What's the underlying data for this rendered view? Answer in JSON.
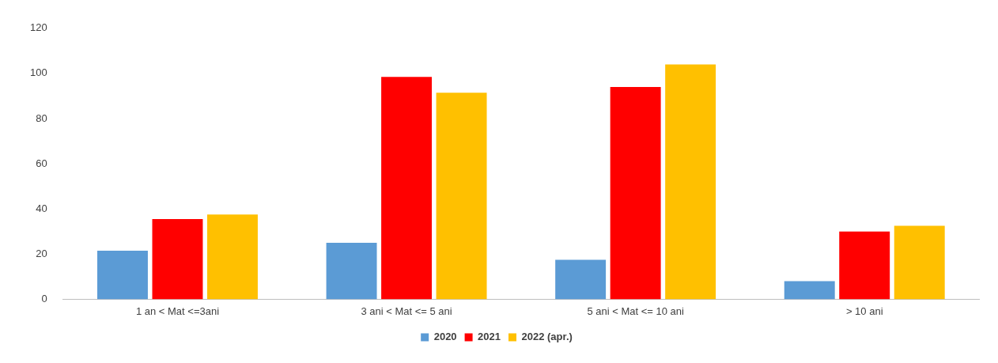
{
  "chart_data": {
    "type": "bar",
    "categories": [
      "1 an < Mat <=3ani",
      "3 ani < Mat <= 5 ani",
      "5 ani < Mat <= 10 ani",
      "> 10 ani"
    ],
    "series": [
      {
        "name": "2020",
        "color": "#5b9bd5",
        "values": [
          21.5,
          25,
          17.5,
          8
        ]
      },
      {
        "name": "2021",
        "color": "#ff0000",
        "values": [
          35.5,
          98.5,
          94,
          30
        ]
      },
      {
        "name": "2022 (apr.)",
        "color": "#ffc000",
        "values": [
          37.5,
          91.5,
          104,
          32.5
        ]
      }
    ],
    "ylim": [
      0,
      120
    ],
    "yticks": [
      0,
      20,
      40,
      60,
      80,
      100,
      120
    ],
    "grid": false,
    "legend": "bottom"
  }
}
